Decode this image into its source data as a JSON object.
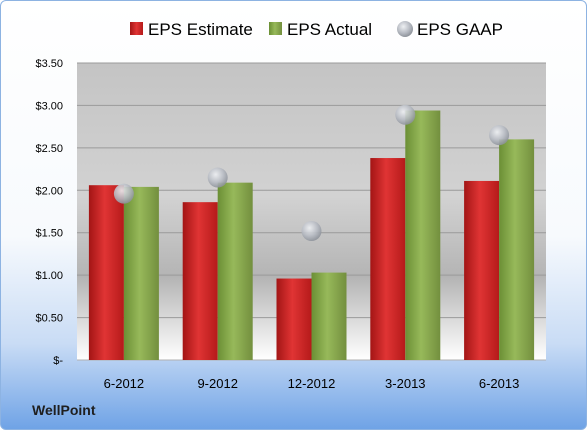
{
  "company": "WellPoint",
  "colors": {
    "estimate": "#cc1f1f",
    "actual": "#7ea343",
    "gaap": "#b8bcc4"
  },
  "chart_data": {
    "type": "bar",
    "categories": [
      "6-2012",
      "9-2012",
      "12-2012",
      "3-2013",
      "6-2013"
    ],
    "series": [
      {
        "name": "EPS Estimate",
        "kind": "bar",
        "values": [
          2.06,
          1.86,
          0.96,
          2.38,
          2.11
        ]
      },
      {
        "name": "EPS Actual",
        "kind": "bar",
        "values": [
          2.04,
          2.09,
          1.03,
          2.94,
          2.6
        ]
      },
      {
        "name": "EPS GAAP",
        "kind": "marker",
        "values": [
          1.96,
          2.15,
          1.52,
          2.89,
          2.65
        ]
      }
    ],
    "y_ticks": [
      {
        "value": 0,
        "label": "$-"
      },
      {
        "value": 0.5,
        "label": "$0.50"
      },
      {
        "value": 1.0,
        "label": "$1.00"
      },
      {
        "value": 1.5,
        "label": "$1.50"
      },
      {
        "value": 2.0,
        "label": "$2.00"
      },
      {
        "value": 2.5,
        "label": "$2.50"
      },
      {
        "value": 3.0,
        "label": "$3.00"
      },
      {
        "value": 3.5,
        "label": "$3.50"
      }
    ],
    "ylim": [
      0,
      3.5
    ],
    "grid": true,
    "legend": "top"
  }
}
